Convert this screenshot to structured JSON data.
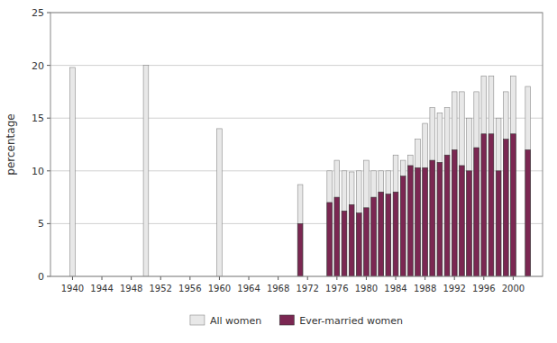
{
  "chart_data": {
    "type": "bar",
    "y_label": "percentage",
    "x": [
      1940,
      1950,
      1960,
      1971,
      1975,
      1976,
      1977,
      1978,
      1979,
      1980,
      1981,
      1982,
      1983,
      1984,
      1985,
      1986,
      1987,
      1988,
      1989,
      1990,
      1991,
      1992,
      1993,
      1994,
      1995,
      1996,
      1997,
      1998,
      1999,
      2000,
      2002
    ],
    "series": [
      {
        "name": "All women",
        "color": "#e8e8e8",
        "values": [
          19.8,
          20.0,
          14.0,
          8.7,
          10.0,
          11.0,
          10.0,
          9.9,
          10.0,
          11.0,
          10.0,
          10.0,
          10.0,
          11.5,
          11.0,
          11.5,
          13.0,
          14.5,
          16.0,
          15.5,
          16.0,
          17.5,
          17.5,
          15.0,
          17.5,
          19.0,
          19.0,
          15.0,
          17.5,
          19.0,
          18.0
        ]
      },
      {
        "name": "Ever-married women",
        "color": "#7b2752",
        "values": [
          null,
          null,
          null,
          5.0,
          7.0,
          7.5,
          6.2,
          6.8,
          6.0,
          6.5,
          7.5,
          8.0,
          7.8,
          8.0,
          9.5,
          10.5,
          10.3,
          10.3,
          11.0,
          10.8,
          11.5,
          12.0,
          10.5,
          10.0,
          12.2,
          13.5,
          13.5,
          10.0,
          13.0,
          13.5,
          12.0
        ]
      }
    ],
    "xlim": [
      1937,
      2004
    ],
    "xticks": [
      1940,
      1944,
      1948,
      1952,
      1956,
      1960,
      1964,
      1968,
      1972,
      1976,
      1980,
      1984,
      1988,
      1992,
      1996,
      2000
    ],
    "ylim": [
      0,
      25
    ],
    "yticks": [
      0,
      5,
      10,
      15,
      20,
      25
    ],
    "grid": true,
    "stacked": false,
    "legend": "bottom"
  }
}
